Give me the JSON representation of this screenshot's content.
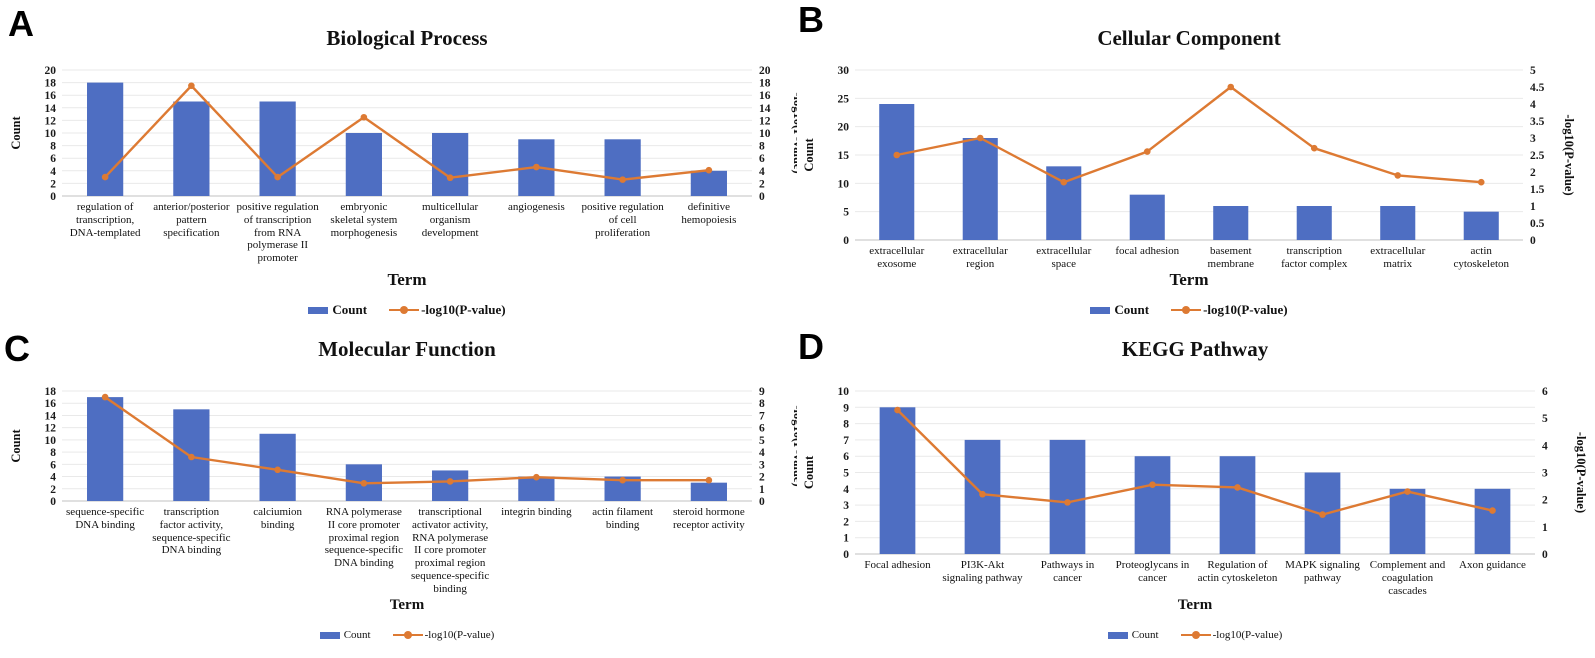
{
  "figure": {
    "legend": {
      "count_label": "Count",
      "pvalue_label": "-log10(P-value)"
    },
    "colors": {
      "bar": "#4e6ec2",
      "line": "#dd7a33",
      "grid": "#e9e9e9",
      "baseline": "#c2c2c2"
    }
  },
  "chart_data": [
    {
      "type": "bar",
      "panel": "A",
      "title": "Biological Process",
      "xlabel": "Term",
      "ylabel_left": "Count",
      "ylabel_right": "-log10(P-value)",
      "yaxis_left": {
        "min": 0,
        "max": 20,
        "step": 2
      },
      "yaxis_right": {
        "min": 0,
        "max": 20,
        "step": 2
      },
      "grid": true,
      "legend_position": "bottom",
      "categories": [
        "regulation of transcription, DNA-templated",
        "anterior/posterior pattern specification",
        "positive regulation of transcription from RNA polymerase II promoter",
        "embryonic skeletal system morphogenesis",
        "multicellular organism development",
        "angiogenesis",
        "positive regulation of cell proliferation",
        "definitive hemopoiesis"
      ],
      "series": [
        {
          "name": "Count",
          "type": "bar",
          "axis": "left",
          "values": [
            18,
            15,
            15,
            10,
            10,
            9,
            9,
            4
          ]
        },
        {
          "name": "-log10(P-value)",
          "type": "line",
          "axis": "right",
          "values": [
            3.0,
            17.5,
            3.0,
            12.5,
            2.9,
            4.6,
            2.6,
            4.1
          ]
        }
      ]
    },
    {
      "type": "bar",
      "panel": "B",
      "title": "Cellular Component",
      "xlabel": "Term",
      "ylabel_left": "Count",
      "ylabel_right": "-log10(P-value)",
      "yaxis_left": {
        "min": 0,
        "max": 30,
        "step": 5
      },
      "yaxis_right": {
        "min": 0,
        "max": 5,
        "step": 0.5
      },
      "grid": true,
      "legend_position": "bottom",
      "categories": [
        "extracellular exosome",
        "extracellular region",
        "extracellular space",
        "focal adhesion",
        "basement membrane",
        "transcription factor complex",
        "extracellular matrix",
        "actin cytoskeleton"
      ],
      "series": [
        {
          "name": "Count",
          "type": "bar",
          "axis": "left",
          "values": [
            24,
            18,
            13,
            8,
            6,
            6,
            6,
            5
          ]
        },
        {
          "name": "-log10(P-value)",
          "type": "line",
          "axis": "right",
          "values": [
            2.5,
            3.0,
            1.7,
            2.6,
            4.5,
            2.7,
            1.9,
            1.7
          ]
        }
      ]
    },
    {
      "type": "bar",
      "panel": "C",
      "title": "Molecular Function",
      "xlabel": "Term",
      "ylabel_left": "Count",
      "ylabel_right": "-log10(P-value)",
      "yaxis_left": {
        "min": 0,
        "max": 18,
        "step": 2
      },
      "yaxis_right": {
        "min": 0,
        "max": 9,
        "step": 1
      },
      "grid": true,
      "legend_position": "bottom",
      "categories": [
        "sequence-specific DNA binding",
        "transcription factor activity, sequence-specific DNA binding",
        "calciumion binding",
        "RNA polymerase II core promoter proximal region sequence-specific DNA binding",
        "transcriptional activator activity, RNA polymerase II core promoter proximal region sequence-specific binding",
        "integrin binding",
        "actin filament binding",
        "steroid hormone receptor activity"
      ],
      "series": [
        {
          "name": "Count",
          "type": "bar",
          "axis": "left",
          "values": [
            17,
            15,
            11,
            6,
            5,
            4,
            4,
            3
          ]
        },
        {
          "name": "-log10(P-value)",
          "type": "line",
          "axis": "right",
          "values": [
            8.5,
            3.6,
            2.55,
            1.45,
            1.6,
            1.95,
            1.7,
            1.7
          ]
        }
      ]
    },
    {
      "type": "bar",
      "panel": "D",
      "title": "KEGG Pathway",
      "xlabel": "Term",
      "ylabel_left": "Count",
      "ylabel_right": "-log10(P-value)",
      "yaxis_left": {
        "min": 0,
        "max": 10,
        "step": 1
      },
      "yaxis_right": {
        "min": 0,
        "max": 6,
        "step": 1
      },
      "grid": true,
      "legend_position": "bottom",
      "categories": [
        "Focal adhesion",
        "PI3K-Akt signaling pathway",
        "Pathways in cancer",
        "Proteoglycans in cancer",
        "Regulation of actin cytoskeleton",
        "MAPK signaling pathway",
        "Complement and coagulation cascades",
        "Axon guidance"
      ],
      "series": [
        {
          "name": "Count",
          "type": "bar",
          "axis": "left",
          "values": [
            9,
            7,
            7,
            6,
            6,
            5,
            4,
            4
          ]
        },
        {
          "name": "-log10(P-value)",
          "type": "line",
          "axis": "right",
          "values": [
            5.3,
            2.2,
            1.9,
            2.55,
            2.45,
            1.45,
            2.3,
            1.6
          ]
        }
      ]
    }
  ]
}
